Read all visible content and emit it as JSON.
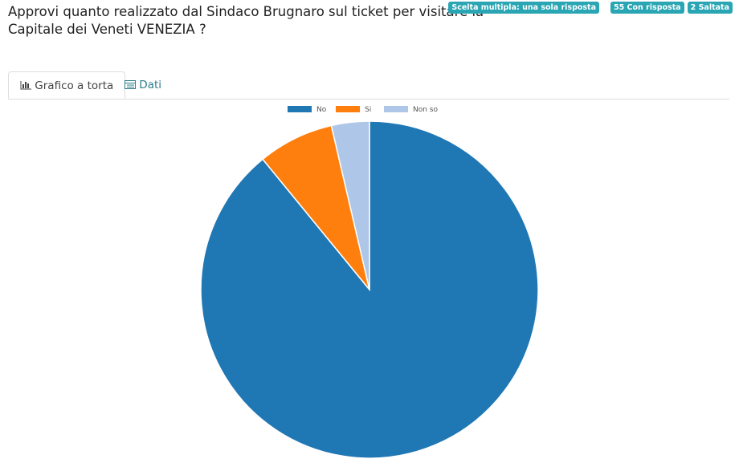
{
  "header": {
    "title_lines": [
      "Approvi quanto realizzato dal Sindaco Brugnaro sul ticket per visitare la",
      "Capitale dei Veneti VENEZIA ?"
    ],
    "badges": [
      "Scelta multipla: una sola risposta",
      "55 Con risposta",
      "2 Saltata"
    ]
  },
  "tabs": [
    "Grafico a torta",
    "Dati"
  ],
  "chart_data": {
    "type": "pie",
    "categories": [
      "No",
      "Si",
      "Non so"
    ],
    "values": [
      49,
      4,
      2
    ],
    "colors": [
      "#1f77b4",
      "#ff7f0e",
      "#aec7e8"
    ],
    "legend": "top"
  }
}
